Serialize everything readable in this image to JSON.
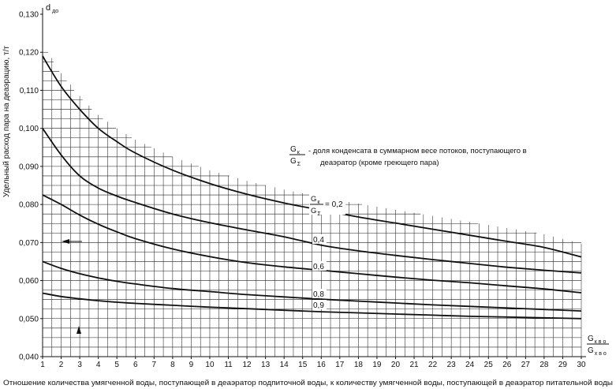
{
  "chart_data": {
    "type": "line",
    "xlabel": "Отношение количества умягченной воды, поступающей в деаэратор подпиточной воды, к количеству умягченной воды, поступающей в деаэратор питательной воды",
    "ylabel": "Удельный расход пара на деаэрацию, т/т",
    "y_symbol": "d",
    "y_symbol_sub": "до",
    "x_symbol_num": "G",
    "x_symbol_num_sub": "к в о",
    "x_symbol_den": "G",
    "x_symbol_den_sub": "х в о",
    "xlim": [
      1,
      30
    ],
    "ylim": [
      0.04,
      0.13
    ],
    "x_ticks": [
      "1",
      "2",
      "3",
      "4",
      "5",
      "6",
      "7",
      "8",
      "9",
      "10",
      "11",
      "12",
      "13",
      "14",
      "15",
      "16",
      "17",
      "18",
      "19",
      "20",
      "21",
      "22",
      "23",
      "24",
      "25",
      "26",
      "27",
      "28",
      "29",
      "30"
    ],
    "y_ticks": [
      "0,040",
      "0,050",
      "0,060",
      "0,070",
      "0,080",
      "0,090",
      "0,100",
      "0,110",
      "0,120",
      "0,130"
    ],
    "y_tick_values": [
      0.04,
      0.05,
      0.06,
      0.07,
      0.08,
      0.09,
      0.1,
      0.11,
      0.12,
      0.13
    ],
    "grid": true,
    "legend_note": {
      "frac_num": "G",
      "frac_num_sub": "к",
      "frac_den": "G",
      "frac_den_sub": "Σ",
      "text_line1": "- доля конденсата в суммарном весе потоков, поступающего в",
      "text_line2": "деаэратор (кроме греющего пара)"
    },
    "series": [
      {
        "name": "0,2",
        "name_prefix_num": "G",
        "name_prefix_num_sub": "к",
        "name_prefix_den": "G",
        "name_prefix_den_sub": "Σ",
        "name_prefix_eq": "=",
        "x": [
          1,
          2,
          3,
          4,
          5,
          6,
          8,
          10,
          12,
          14,
          16,
          18,
          20,
          22,
          24,
          26,
          28,
          30
        ],
        "y": [
          0.119,
          0.111,
          0.105,
          0.1,
          0.0965,
          0.0935,
          0.089,
          0.0855,
          0.0827,
          0.0804,
          0.0785,
          0.0767,
          0.0751,
          0.0735,
          0.0719,
          0.0703,
          0.0687,
          0.0662
        ]
      },
      {
        "name": "0,4",
        "x": [
          1,
          2,
          3,
          4,
          5,
          6,
          8,
          10,
          12,
          14,
          16,
          18,
          20,
          22,
          24,
          26,
          28,
          30
        ],
        "y": [
          0.1,
          0.093,
          0.0875,
          0.0843,
          0.0822,
          0.0805,
          0.0775,
          0.0752,
          0.0733,
          0.0715,
          0.0693,
          0.0678,
          0.0666,
          0.0655,
          0.0645,
          0.0635,
          0.0627,
          0.062
        ]
      },
      {
        "name": "0,6",
        "x": [
          1,
          2,
          3,
          4,
          5,
          6,
          8,
          10,
          12,
          14,
          16,
          18,
          20,
          22,
          24,
          26,
          28,
          30
        ],
        "y": [
          0.0825,
          0.08,
          0.0772,
          0.0748,
          0.0728,
          0.071,
          0.0683,
          0.0663,
          0.0647,
          0.0636,
          0.0627,
          0.0618,
          0.0609,
          0.0601,
          0.0594,
          0.0586,
          0.0578,
          0.0568
        ]
      },
      {
        "name": "0,8",
        "x": [
          1,
          2,
          3,
          4,
          5,
          6,
          8,
          10,
          12,
          14,
          16,
          18,
          20,
          22,
          24,
          26,
          28,
          30
        ],
        "y": [
          0.065,
          0.0632,
          0.0618,
          0.0607,
          0.0598,
          0.0591,
          0.0579,
          0.0571,
          0.0563,
          0.0557,
          0.0551,
          0.0546,
          0.0541,
          0.0536,
          0.0532,
          0.0528,
          0.0524,
          0.052
        ]
      },
      {
        "name": "0,9",
        "x": [
          1,
          2,
          3,
          4,
          5,
          6,
          8,
          10,
          12,
          14,
          16,
          18,
          20,
          22,
          24,
          26,
          28,
          30
        ],
        "y": [
          0.0567,
          0.0558,
          0.0552,
          0.0547,
          0.0543,
          0.054,
          0.0535,
          0.053,
          0.0526,
          0.0522,
          0.0518,
          0.0515,
          0.0512,
          0.0509,
          0.0506,
          0.0504,
          0.0502,
          0.05
        ]
      }
    ]
  }
}
